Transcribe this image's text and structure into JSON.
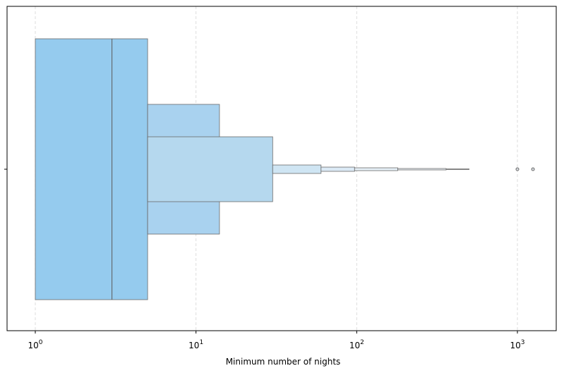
{
  "chart_data": {
    "type": "boxen",
    "orientation": "horizontal",
    "xlabel": "Minimum number of nights",
    "ylabel": "",
    "xscale": "log",
    "xlim": [
      0.75,
      1700
    ],
    "xticks": [
      1,
      10,
      100,
      1000
    ],
    "xtick_labels": [
      "10^0",
      "10^1",
      "10^2",
      "10^3"
    ],
    "grid": {
      "x": true,
      "style": "dashed"
    },
    "median": 3,
    "letter_values": [
      {
        "low": 1,
        "high": 5,
        "color": "#95cbee"
      },
      {
        "low": 5,
        "high": 14,
        "color": "#a9d2ef"
      },
      {
        "low": 5,
        "high": 30,
        "color": "#b5d8ee"
      },
      {
        "low": 30,
        "high": 60,
        "color": "#cfe5f3"
      },
      {
        "low": 60,
        "high": 97,
        "color": "#dbeaf5"
      },
      {
        "low": 97,
        "high": 180,
        "color": "#e6f0f7"
      },
      {
        "low": 180,
        "high": 360,
        "color": "#eef4f9"
      },
      {
        "low": 360,
        "high": 500,
        "color": "#f4f7fa"
      }
    ],
    "outliers": [
      1000,
      1250
    ]
  }
}
